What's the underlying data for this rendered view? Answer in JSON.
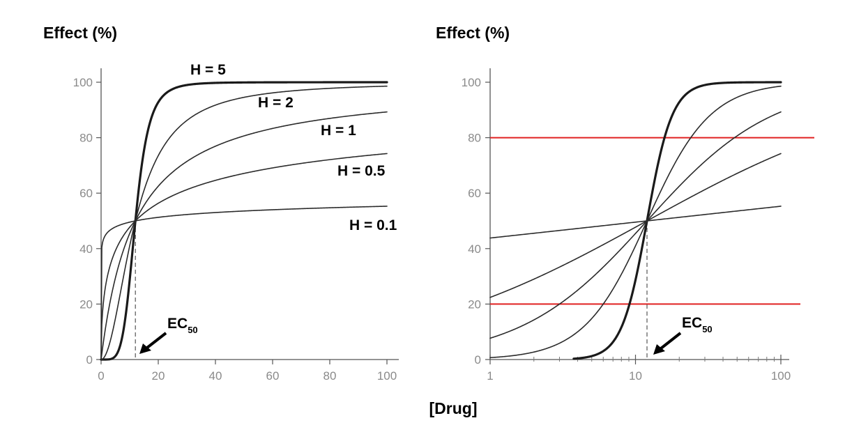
{
  "chart_data": [
    {
      "type": "line",
      "ylabel": "Effect (%)",
      "xlabel": "",
      "x_scale": "linear",
      "xlim": [
        0,
        100
      ],
      "ylim": [
        0,
        100
      ],
      "x_ticks": [
        "0",
        "20",
        "40",
        "60",
        "80",
        "100"
      ],
      "y_ticks": [
        "0",
        "20",
        "40",
        "60",
        "80",
        "100"
      ],
      "ec50": 12,
      "annotation": {
        "text": "EC",
        "subscript": "50"
      },
      "series": [
        {
          "name": "H = 5",
          "hill": 5,
          "x": [
            0,
            5,
            8,
            10,
            12,
            15,
            20,
            30,
            50,
            100
          ],
          "y": [
            0,
            1.3,
            12,
            28.7,
            50,
            75.3,
            92.8,
            99.3,
            99.9,
            100
          ]
        },
        {
          "name": "H = 2",
          "hill": 2,
          "x": [
            0,
            2,
            5,
            10,
            12,
            20,
            40,
            60,
            80,
            100
          ],
          "y": [
            0,
            2.7,
            14.8,
            41,
            50,
            73.5,
            91.7,
            96.2,
            97.8,
            98.6
          ]
        },
        {
          "name": "H = 1",
          "hill": 1,
          "x": [
            0,
            1,
            5,
            12,
            20,
            40,
            60,
            80,
            100
          ],
          "y": [
            0,
            7.7,
            29.4,
            50,
            62.5,
            76.9,
            83.3,
            87,
            89.3
          ]
        },
        {
          "name": "H = 0.5",
          "hill": 0.5,
          "x": [
            0,
            1,
            5,
            12,
            20,
            40,
            60,
            80,
            100
          ],
          "y": [
            0,
            22.4,
            39.2,
            50,
            56.4,
            64.6,
            69.1,
            72.1,
            74.3
          ]
        },
        {
          "name": "H = 0.1",
          "hill": 0.1,
          "x": [
            0,
            1,
            5,
            12,
            20,
            40,
            60,
            80,
            100
          ],
          "y": [
            0,
            43.8,
            47.8,
            50,
            51.3,
            53,
            54,
            54.7,
            55.3
          ]
        }
      ]
    },
    {
      "type": "line",
      "ylabel": "Effect (%)",
      "xlabel": "[Drug]",
      "x_scale": "log",
      "xlim": [
        1,
        100
      ],
      "ylim": [
        0,
        100
      ],
      "x_ticks": [
        "1",
        "10",
        "100"
      ],
      "y_ticks": [
        "0",
        "20",
        "40",
        "60",
        "80",
        "100"
      ],
      "ec50": 12,
      "annotation": {
        "text": "EC",
        "subscript": "50"
      },
      "reference_lines": [
        20,
        80
      ],
      "colors": {
        "reference_line": "#e02020",
        "curve": "#1a1a1a"
      },
      "series": [
        {
          "hill": 5,
          "x": [
            4,
            6,
            8,
            10,
            12,
            15,
            20,
            30,
            50,
            100
          ],
          "y": [
            0.4,
            3,
            11.6,
            28.7,
            50,
            75.3,
            92.8,
            99.3,
            99.9,
            100
          ]
        },
        {
          "hill": 2,
          "x": [
            1,
            2,
            5,
            10,
            12,
            20,
            40,
            100
          ],
          "y": [
            0.7,
            2.7,
            14.8,
            41,
            50,
            73.5,
            91.7,
            98.6
          ]
        },
        {
          "hill": 1,
          "x": [
            1,
            2,
            5,
            10,
            12,
            20,
            50,
            100
          ],
          "y": [
            7.7,
            14.3,
            29.4,
            45.5,
            50,
            62.5,
            80.6,
            89.3
          ]
        },
        {
          "hill": 0.5,
          "x": [
            1,
            2,
            5,
            10,
            12,
            20,
            50,
            100
          ],
          "y": [
            22.4,
            29,
            39.2,
            47.7,
            50,
            56.4,
            67.1,
            74.3
          ]
        },
        {
          "hill": 0.1,
          "x": [
            1,
            2,
            5,
            10,
            12,
            20,
            50,
            100
          ],
          "y": [
            43.8,
            45.5,
            47.8,
            49.5,
            50,
            51.3,
            53.5,
            55.3
          ]
        }
      ]
    }
  ]
}
